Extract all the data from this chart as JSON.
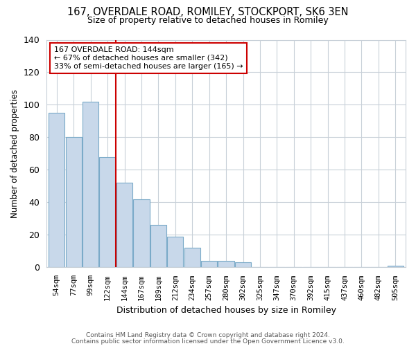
{
  "title1": "167, OVERDALE ROAD, ROMILEY, STOCKPORT, SK6 3EN",
  "title2": "Size of property relative to detached houses in Romiley",
  "xlabel": "Distribution of detached houses by size in Romiley",
  "ylabel": "Number of detached properties",
  "bar_labels": [
    "54sqm",
    "77sqm",
    "99sqm",
    "122sqm",
    "144sqm",
    "167sqm",
    "189sqm",
    "212sqm",
    "234sqm",
    "257sqm",
    "280sqm",
    "302sqm",
    "325sqm",
    "347sqm",
    "370sqm",
    "392sqm",
    "415sqm",
    "437sqm",
    "460sqm",
    "482sqm",
    "505sqm"
  ],
  "bar_values": [
    95,
    80,
    102,
    68,
    52,
    42,
    26,
    19,
    12,
    4,
    4,
    3,
    0,
    0,
    0,
    0,
    0,
    0,
    0,
    0,
    1
  ],
  "bar_color": "#c8d8ea",
  "bar_edge_color": "#7aaac8",
  "vline_index": 4,
  "vline_color": "#cc0000",
  "annotation_title": "167 OVERDALE ROAD: 144sqm",
  "annotation_line1": "← 67% of detached houses are smaller (342)",
  "annotation_line2": "33% of semi-detached houses are larger (165) →",
  "annotation_box_color": "#ffffff",
  "annotation_box_edge": "#cc0000",
  "ylim": [
    0,
    140
  ],
  "yticks": [
    0,
    20,
    40,
    60,
    80,
    100,
    120,
    140
  ],
  "grid_color": "#c8d0d8",
  "footer1": "Contains HM Land Registry data © Crown copyright and database right 2024.",
  "footer2": "Contains public sector information licensed under the Open Government Licence v3.0."
}
